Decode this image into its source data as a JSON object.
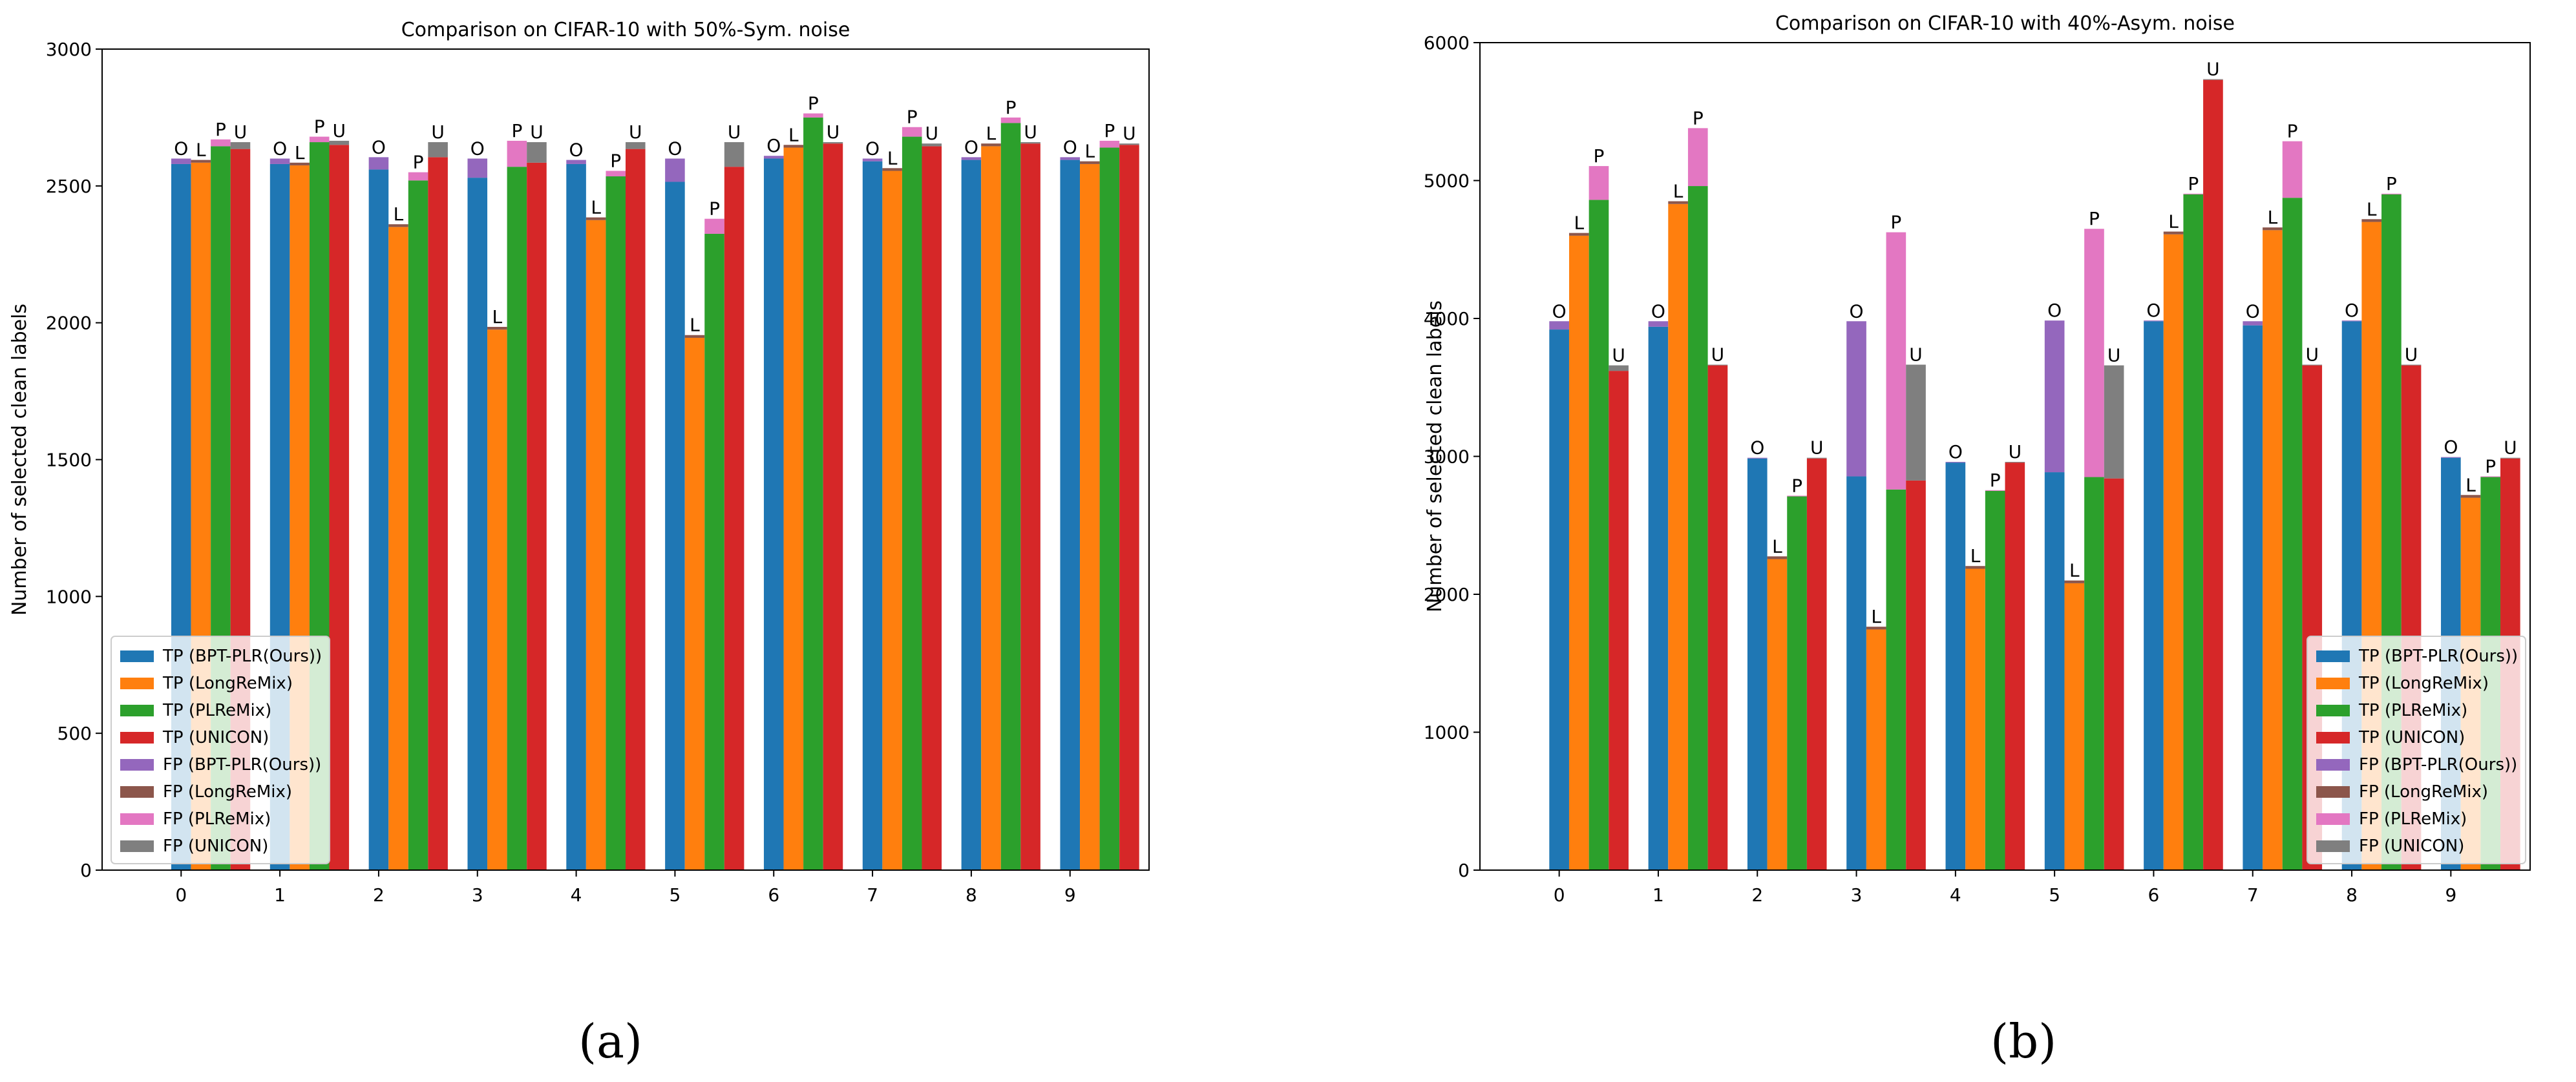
{
  "colors": {
    "tp_ours": "#1f77b4",
    "tp_long": "#ff7f0e",
    "tp_pl": "#2ca02c",
    "tp_uni": "#d62728",
    "fp_ours": "#9467bd",
    "fp_long": "#8c564b",
    "fp_pl": "#e377c2",
    "fp_uni": "#7f7f7f"
  },
  "legend": [
    "TP (BPT-PLR(Ours))",
    "TP (LongReMix)",
    "TP (PLReMix)",
    "TP (UNICON)",
    "FP (BPT-PLR(Ours))",
    "FP (LongReMix)",
    "FP (PLReMix)",
    "FP (UNICON)"
  ],
  "captions": {
    "a": "(a)",
    "b": "(b)"
  },
  "chart_data": [
    {
      "type": "bar",
      "stacked": true,
      "title": "Comparison on CIFAR-10 with 50%-Sym. noise",
      "ylabel": "Number of selected clean labels",
      "xlabel": "",
      "ylim": [
        0,
        3000
      ],
      "yticks": [
        0,
        500,
        1000,
        1500,
        2000,
        2500,
        3000
      ],
      "categories": [
        "0",
        "1",
        "2",
        "3",
        "4",
        "5",
        "6",
        "7",
        "8",
        "9"
      ],
      "method_letters": [
        "O",
        "L",
        "P",
        "U"
      ],
      "legend_position": "lower-left",
      "series": [
        {
          "name": "BPT-PLR(Ours)",
          "tp": [
            2580,
            2580,
            2560,
            2530,
            2580,
            2515,
            2600,
            2590,
            2595,
            2595
          ],
          "fp": [
            20,
            20,
            45,
            70,
            15,
            85,
            10,
            10,
            10,
            10
          ]
        },
        {
          "name": "LongReMix",
          "tp": [
            2585,
            2575,
            2350,
            1975,
            2375,
            1945,
            2640,
            2555,
            2645,
            2580
          ],
          "fp": [
            10,
            10,
            10,
            10,
            10,
            10,
            10,
            10,
            10,
            10
          ]
        },
        {
          "name": "PLReMix",
          "tp": [
            2645,
            2660,
            2520,
            2570,
            2535,
            2325,
            2750,
            2680,
            2730,
            2640
          ],
          "fp": [
            25,
            20,
            30,
            95,
            20,
            55,
            15,
            35,
            20,
            25
          ]
        },
        {
          "name": "UNICON",
          "tp": [
            2635,
            2650,
            2605,
            2585,
            2635,
            2570,
            2655,
            2645,
            2655,
            2650
          ],
          "fp": [
            25,
            15,
            55,
            75,
            25,
            90,
            5,
            10,
            5,
            5
          ]
        }
      ]
    },
    {
      "type": "bar",
      "stacked": true,
      "title": "Comparison on CIFAR-10 with 40%-Asym. noise",
      "ylabel": "Number of selected clean labels",
      "xlabel": "",
      "ylim": [
        0,
        6000
      ],
      "yticks": [
        0,
        1000,
        2000,
        3000,
        4000,
        5000,
        6000
      ],
      "categories": [
        "0",
        "1",
        "2",
        "3",
        "4",
        "5",
        "6",
        "7",
        "8",
        "9"
      ],
      "method_letters": [
        "O",
        "L",
        "P",
        "U"
      ],
      "legend_position": "lower-right",
      "series": [
        {
          "name": "BPT-PLR(Ours)",
          "tp": [
            3920,
            3940,
            2985,
            2855,
            2955,
            2885,
            3980,
            3950,
            3980,
            2990
          ],
          "fp": [
            60,
            40,
            5,
            1125,
            5,
            1100,
            5,
            30,
            5,
            5
          ]
        },
        {
          "name": "LongReMix",
          "tp": [
            4600,
            4830,
            2255,
            1745,
            2185,
            2080,
            4610,
            4640,
            4700,
            2700
          ],
          "fp": [
            20,
            20,
            20,
            20,
            20,
            20,
            20,
            20,
            20,
            20
          ]
        },
        {
          "name": "PLReMix",
          "tp": [
            4860,
            4960,
            2710,
            2760,
            2750,
            2850,
            4900,
            4875,
            4900,
            2850
          ],
          "fp": [
            245,
            420,
            5,
            1865,
            5,
            1800,
            5,
            410,
            5,
            5
          ]
        },
        {
          "name": "UNICON",
          "tp": [
            3620,
            3660,
            2985,
            2825,
            2955,
            2840,
            5730,
            3660,
            3660,
            2985
          ],
          "fp": [
            40,
            5,
            5,
            840,
            5,
            820,
            5,
            5,
            5,
            5
          ]
        }
      ]
    }
  ]
}
